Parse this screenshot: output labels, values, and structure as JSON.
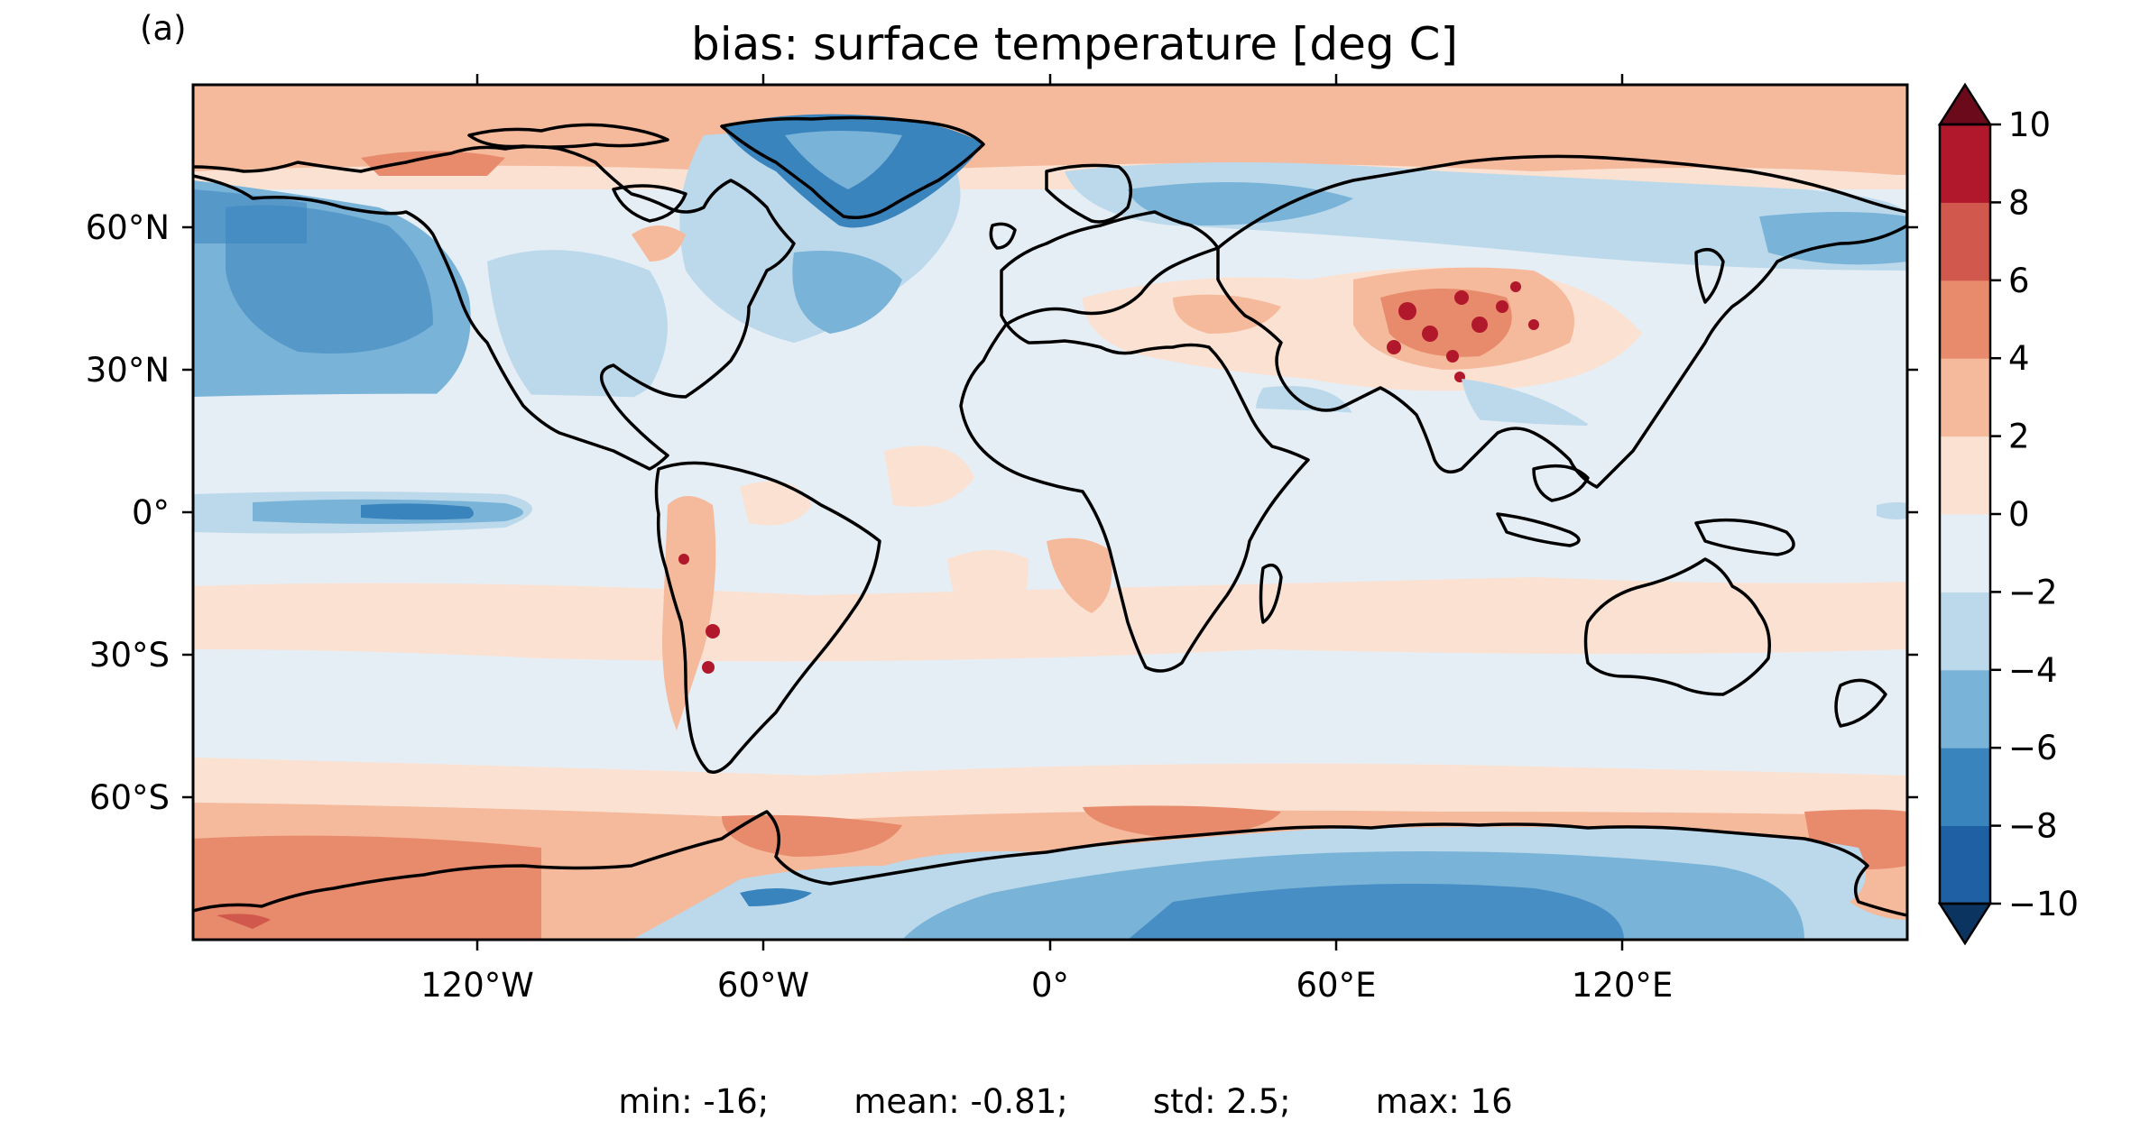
{
  "panel_label": "(a)",
  "title": "bias: surface temperature [deg C]",
  "x_ticks": [
    "120°W",
    "60°W",
    "0°",
    "60°E",
    "120°E"
  ],
  "y_ticks": [
    "60°N",
    "30°N",
    "0°",
    "30°S",
    "60°S"
  ],
  "colorbar": {
    "ticks": [
      "10",
      "8",
      "6",
      "4",
      "2",
      "0",
      "−2",
      "−4",
      "−6",
      "−8",
      "−10"
    ],
    "levels": [
      -10,
      -8,
      -6,
      -4,
      -2,
      0,
      2,
      4,
      6,
      8,
      10
    ],
    "colors": [
      "#1f5fa3",
      "#3a84be",
      "#79b3d8",
      "#bcd9eb",
      "#e6eef5",
      "#fbe1d2",
      "#f5b99b",
      "#e88a6c",
      "#d1584c",
      "#b2182b"
    ],
    "extend_low_color": "#0b3560",
    "extend_high_color": "#6b0a1b"
  },
  "stats": {
    "min": "min: -16;",
    "mean": "mean: -0.81;",
    "std": "std: 2.5;",
    "max": "max: 16"
  },
  "map_data": {
    "type": "filled-contour world map",
    "variable": "surface temperature bias",
    "units": "deg C",
    "projection": "PlateCarree",
    "lon_range": [
      -180,
      180
    ],
    "lat_range": [
      -90,
      90
    ],
    "features": [
      {
        "region": "Arctic Ocean",
        "bias": "+2 to +4"
      },
      {
        "region": "Greenland",
        "bias": "-4 to -8"
      },
      {
        "region": "North Pacific",
        "bias": "-2 to -6"
      },
      {
        "region": "Central Asia / Tibetan Plateau",
        "bias": "+4 to +10"
      },
      {
        "region": "Southern Ocean",
        "bias": "+2 to +6"
      },
      {
        "region": "East Antarctica",
        "bias": "-4 to -8"
      },
      {
        "region": "Equatorial East Pacific",
        "bias": "-2 to -8"
      },
      {
        "region": "Andes",
        "bias": "+4 to +10"
      }
    ]
  }
}
